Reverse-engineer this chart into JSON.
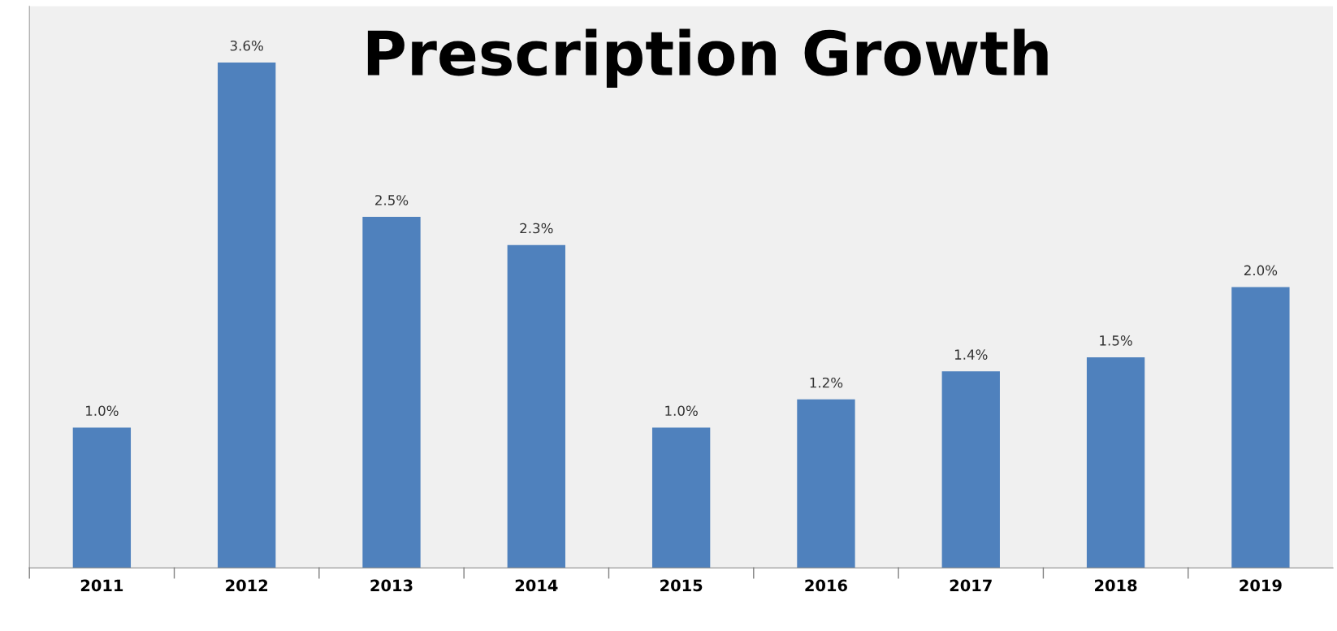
{
  "chart_data": {
    "type": "bar",
    "title": "Prescription Growth",
    "categories": [
      "2011",
      "2012",
      "2013",
      "2014",
      "2015",
      "2016",
      "2017",
      "2018",
      "2019"
    ],
    "values": [
      1.0,
      3.6,
      2.5,
      2.3,
      1.0,
      1.2,
      1.4,
      1.5,
      2.0
    ],
    "value_labels": [
      "1.0%",
      "3.6%",
      "2.5%",
      "2.3%",
      "1.0%",
      "1.2%",
      "1.4%",
      "1.5%",
      "2.0%"
    ],
    "color": "#4f81bd",
    "grid": false,
    "legend": false
  }
}
